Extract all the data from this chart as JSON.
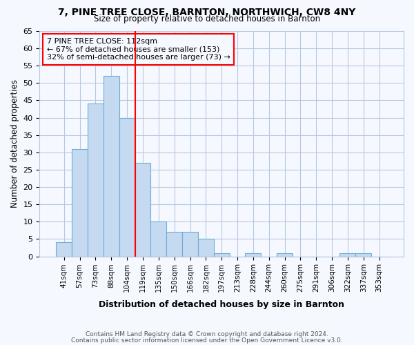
{
  "title1": "7, PINE TREE CLOSE, BARNTON, NORTHWICH, CW8 4NY",
  "title2": "Size of property relative to detached houses in Barnton",
  "xlabel": "Distribution of detached houses by size in Barnton",
  "ylabel": "Number of detached properties",
  "categories": [
    "41sqm",
    "57sqm",
    "73sqm",
    "88sqm",
    "104sqm",
    "119sqm",
    "135sqm",
    "150sqm",
    "166sqm",
    "182sqm",
    "197sqm",
    "213sqm",
    "228sqm",
    "244sqm",
    "260sqm",
    "275sqm",
    "291sqm",
    "306sqm",
    "322sqm",
    "337sqm",
    "353sqm"
  ],
  "values": [
    4,
    31,
    44,
    52,
    40,
    27,
    10,
    7,
    7,
    5,
    1,
    0,
    1,
    0,
    1,
    0,
    0,
    0,
    1,
    1,
    0
  ],
  "bar_color": "#c5d9f0",
  "bar_edge_color": "#6baed6",
  "vline_x": 4.5,
  "vline_color": "red",
  "annotation_lines": [
    "7 PINE TREE CLOSE: 112sqm",
    "← 67% of detached houses are smaller (153)",
    "32% of semi-detached houses are larger (73) →"
  ],
  "annotation_box_color": "red",
  "ylim": [
    0,
    65
  ],
  "yticks": [
    0,
    5,
    10,
    15,
    20,
    25,
    30,
    35,
    40,
    45,
    50,
    55,
    60,
    65
  ],
  "footer1": "Contains HM Land Registry data © Crown copyright and database right 2024.",
  "footer2": "Contains public sector information licensed under the Open Government Licence v3.0.",
  "background_color": "#f5f8ff",
  "grid_color": "#b8c8e0"
}
